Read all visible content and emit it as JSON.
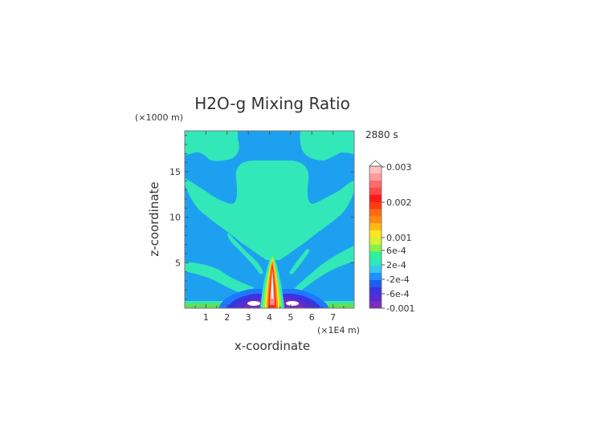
{
  "chart_data": {
    "type": "heatmap",
    "title": "H2O-g Mixing Ratio",
    "time_label": "2880 s",
    "xlabel": "x-coordinate",
    "ylabel": "z-coordinate",
    "x_unit": "(×1E4 m)",
    "y_unit": "(×1000 m)",
    "xlim": [
      0,
      8
    ],
    "ylim": [
      0,
      19.5
    ],
    "x_ticks": [
      "1",
      "2",
      "3",
      "4",
      "5",
      "6",
      "7"
    ],
    "y_ticks": [
      "5",
      "10",
      "15"
    ],
    "grid": false,
    "legend": "right",
    "colorbar_labels": [
      "0.003",
      "0.002",
      "0.001",
      "6e-4",
      "2e-4",
      "-2e-4",
      "-6e-4",
      "-0.001"
    ],
    "colorbar_colors": [
      "#7a2dbf",
      "#5a2bd0",
      "#3a33e0",
      "#1f5cf0",
      "#1e90ff",
      "#38c6f0",
      "#2ee8c0",
      "#2ef29a",
      "#8cf04a",
      "#d7f230",
      "#ffe61a",
      "#ffba12",
      "#ff8a10",
      "#ff6a10",
      "#ff3b12",
      "#ff1a1a",
      "#ff4848",
      "#ff6a6a",
      "#ff9a9a",
      "#ffc0c0"
    ]
  }
}
